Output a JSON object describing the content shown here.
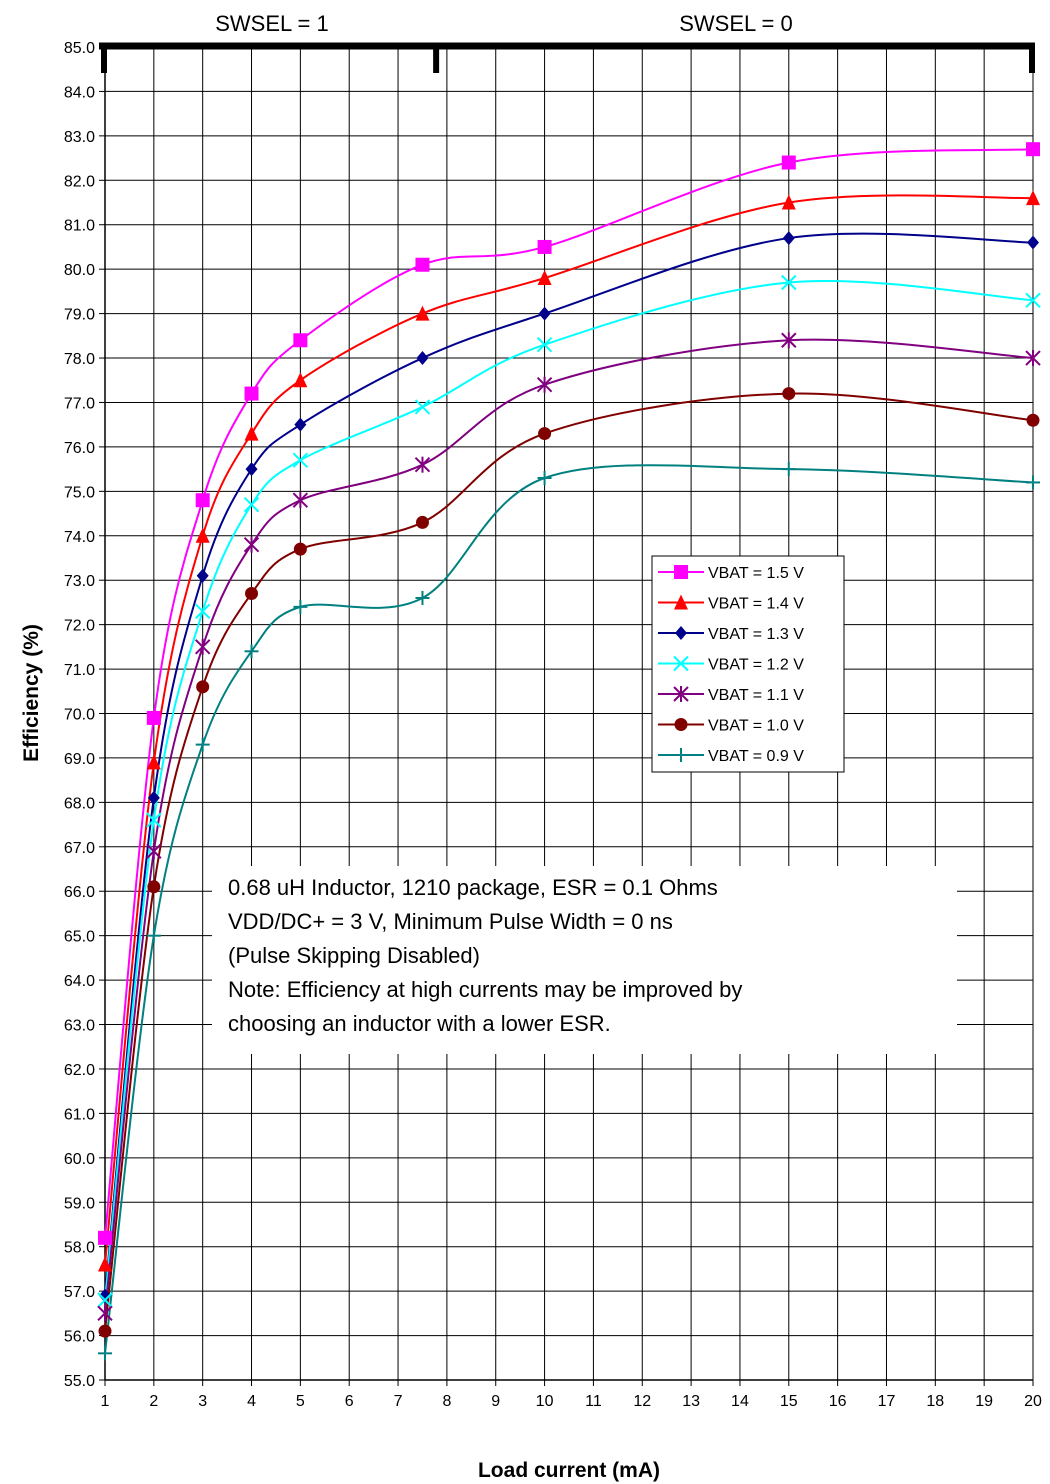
{
  "chart_data": {
    "type": "line",
    "xlabel": "Load current (mA)",
    "ylabel": "Efficiency (%)",
    "ylim": [
      55.0,
      85.0
    ],
    "y_ticks": [
      "55.0",
      "56.0",
      "57.0",
      "58.0",
      "59.0",
      "60.0",
      "61.0",
      "62.0",
      "63.0",
      "64.0",
      "65.0",
      "66.0",
      "67.0",
      "68.0",
      "69.0",
      "70.0",
      "71.0",
      "72.0",
      "73.0",
      "74.0",
      "75.0",
      "76.0",
      "77.0",
      "78.0",
      "79.0",
      "80.0",
      "81.0",
      "82.0",
      "83.0",
      "84.0",
      "85.0"
    ],
    "x_tick_labels": [
      "1",
      "2",
      "3",
      "4",
      "5",
      "6",
      "7",
      "8",
      "9",
      "10",
      "11",
      "12",
      "13",
      "14",
      "15",
      "16",
      "17",
      "18",
      "19",
      "20"
    ],
    "x_tick_values": [
      1,
      2,
      3,
      4,
      5,
      6,
      7,
      8,
      9,
      10,
      11,
      12,
      13,
      14,
      15,
      16,
      17,
      18,
      19,
      20
    ],
    "x": [
      1,
      2,
      3,
      4,
      5,
      7.5,
      10,
      15,
      20
    ],
    "grid": true,
    "legend_position": "center-right",
    "regions": [
      {
        "label": "SWSEL = 1",
        "from": 1,
        "to": 7.8
      },
      {
        "label": "SWSEL = 0",
        "from": 7.8,
        "to": 20
      }
    ],
    "series": [
      {
        "name": "VBAT = 1.5 V",
        "color": "#ff00ff",
        "marker": "square",
        "values": [
          58.2,
          69.9,
          74.8,
          77.2,
          78.4,
          80.1,
          80.5,
          82.4,
          82.7
        ]
      },
      {
        "name": "VBAT = 1.4 V",
        "color": "#ff0000",
        "marker": "triangle",
        "values": [
          57.6,
          68.9,
          74.0,
          76.3,
          77.5,
          79.0,
          79.8,
          81.5,
          81.6
        ]
      },
      {
        "name": "VBAT = 1.3 V",
        "color": "#00008b",
        "marker": "diamond",
        "values": [
          56.9,
          68.1,
          73.1,
          75.5,
          76.5,
          78.0,
          79.0,
          80.7,
          80.6
        ]
      },
      {
        "name": "VBAT = 1.2 V",
        "color": "#00ffff",
        "marker": "x",
        "values": [
          56.8,
          67.6,
          72.3,
          74.7,
          75.7,
          76.9,
          78.3,
          79.7,
          79.3
        ]
      },
      {
        "name": "VBAT = 1.1 V",
        "color": "#800080",
        "marker": "star",
        "values": [
          56.5,
          66.9,
          71.5,
          73.8,
          74.8,
          75.6,
          77.4,
          78.4,
          78.0
        ]
      },
      {
        "name": "VBAT = 1.0 V",
        "color": "#800000",
        "marker": "circle",
        "values": [
          56.1,
          66.1,
          70.6,
          72.7,
          73.7,
          74.3,
          76.3,
          77.2,
          76.6
        ]
      },
      {
        "name": "VBAT = 0.9 V",
        "color": "#008080",
        "marker": "plus",
        "values": [
          55.6,
          65.0,
          69.3,
          71.4,
          72.4,
          72.6,
          75.3,
          75.5,
          75.2
        ]
      }
    ],
    "annotation": [
      "0.68 uH Inductor, 1210 package, ESR = 0.1 Ohms",
      "VDD/DC+ = 3 V, Minimum Pulse Width = 0 ns",
      "(Pulse Skipping Disabled)",
      "Note: Efficiency at high currents may be improved by",
      "choosing an inductor with a lower ESR."
    ]
  }
}
